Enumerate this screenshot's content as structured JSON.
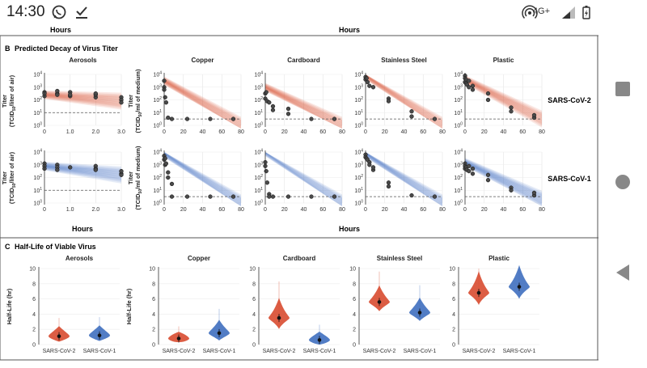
{
  "status_bar": {
    "time": "14:30",
    "network": "4G+",
    "icons": [
      "whatsapp-icon",
      "check-download-icon",
      "hotspot-icon",
      "signal-icon",
      "battery-charging-icon"
    ]
  },
  "nav_bar": {
    "icons": [
      "recents-square-icon",
      "home-circle-icon",
      "back-triangle-icon"
    ]
  },
  "figure": {
    "top_hours_left": "Hours",
    "top_hours_center": "Hours",
    "section_b_letter": "B",
    "section_b_title": "Predicted Decay of Virus Titer",
    "section_c_letter": "C",
    "section_c_title": "Half-Life of Viable Virus",
    "hours_label_b_left": "Hours",
    "hours_label_b_center": "Hours",
    "row_label_cov2": "SARS-CoV-2",
    "row_label_cov1": "SARS-CoV-1",
    "ylabel_air_1": "Titer",
    "ylabel_air_2": "(TCID",
    "ylabel_air_sub": "50",
    "ylabel_air_3": "/liter of air)",
    "ylabel_med_1": "Titer",
    "ylabel_med_2": "(TCID",
    "ylabel_med_sub": "50",
    "ylabel_med_3": "/ml of medium)",
    "halflife_ylabel": "Half-Life (hr)"
  },
  "chart_data": [
    {
      "id": "decay",
      "type": "scatter",
      "title": "Predicted Decay of Virus Titer",
      "colors": {
        "SARS-CoV-2": "#d84b30",
        "SARS-CoV-1": "#3f6fbf"
      },
      "detection_limit": {
        "air": 10,
        "medium": 3.16
      },
      "panels": [
        {
          "material": "Aerosols",
          "virus": "SARS-CoV-2",
          "xlim": [
            0,
            3
          ],
          "xticks": [
            0,
            1.0,
            2.0,
            3.0
          ],
          "ylim_log10": [
            0,
            4
          ],
          "yticks": [
            "10^0",
            "10^1",
            "10^2",
            "10^3",
            "10^4"
          ],
          "ylabel": "Titer (TCID50/liter of air)",
          "fit": [
            2.4,
            1.9
          ],
          "points": [
            [
              0,
              2.6
            ],
            [
              0,
              2.3
            ],
            [
              0,
              2.5
            ],
            [
              0.5,
              2.5
            ],
            [
              0.5,
              2.7
            ],
            [
              0.5,
              2.4
            ],
            [
              1.0,
              2.3
            ],
            [
              1.0,
              2.6
            ],
            [
              1.0,
              2.4
            ],
            [
              2.0,
              2.2
            ],
            [
              2.0,
              2.4
            ],
            [
              2.0,
              2.5
            ],
            [
              3.0,
              2.2
            ],
            [
              3.0,
              2.0
            ],
            [
              3.0,
              1.8
            ]
          ]
        },
        {
          "material": "Copper",
          "virus": "SARS-CoV-2",
          "xlim": [
            0,
            80
          ],
          "xticks": [
            0,
            20,
            40,
            60,
            80
          ],
          "ylim_log10": [
            0,
            4
          ],
          "yticks": [
            "10^0",
            "10^1",
            "10^2",
            "10^3",
            "10^4"
          ],
          "ylabel": "Titer (TCID50/ml of medium)",
          "fit": [
            3.5,
            0
          ],
          "points": [
            [
              0,
              3.5
            ],
            [
              0,
              3.0
            ],
            [
              0,
              2.8
            ],
            [
              1,
              2.2
            ],
            [
              2,
              1.8
            ],
            [
              4,
              0.6
            ],
            [
              8,
              0.5
            ],
            [
              24,
              0.5
            ],
            [
              48,
              0.5
            ],
            [
              72,
              0.5
            ]
          ]
        },
        {
          "material": "Cardboard",
          "virus": "SARS-CoV-2",
          "xlim": [
            0,
            80
          ],
          "xticks": [
            0,
            20,
            40,
            60,
            80
          ],
          "ylim_log10": [
            0,
            4
          ],
          "yticks": [
            "10^0",
            "10^1",
            "10^2",
            "10^3",
            "10^4"
          ],
          "fit": [
            3.0,
            0
          ],
          "points": [
            [
              0,
              2.5
            ],
            [
              0,
              2.1
            ],
            [
              1,
              2.6
            ],
            [
              2,
              1.9
            ],
            [
              4,
              1.8
            ],
            [
              8,
              1.5
            ],
            [
              8,
              1.2
            ],
            [
              24,
              1.3
            ],
            [
              24,
              0.9
            ],
            [
              48,
              0.5
            ],
            [
              72,
              0.5
            ]
          ]
        },
        {
          "material": "Stainless Steel",
          "virus": "SARS-CoV-2",
          "xlim": [
            0,
            80
          ],
          "xticks": [
            0,
            20,
            40,
            60,
            80
          ],
          "ylim_log10": [
            0,
            4
          ],
          "yticks": [
            "10^0",
            "10^1",
            "10^2",
            "10^3",
            "10^4"
          ],
          "fit": [
            3.9,
            0
          ],
          "points": [
            [
              0,
              3.8
            ],
            [
              0,
              3.6
            ],
            [
              1,
              3.7
            ],
            [
              2,
              3.4
            ],
            [
              4,
              3.1
            ],
            [
              8,
              3.0
            ],
            [
              24,
              2.1
            ],
            [
              24,
              1.9
            ],
            [
              48,
              1.1
            ],
            [
              48,
              0.7
            ],
            [
              72,
              0.5
            ]
          ]
        },
        {
          "material": "Plastic",
          "virus": "SARS-CoV-2",
          "xlim": [
            0,
            80
          ],
          "xticks": [
            0,
            20,
            40,
            60,
            80
          ],
          "ylim_log10": [
            0,
            4
          ],
          "yticks": [
            "10^0",
            "10^1",
            "10^2",
            "10^3",
            "10^4"
          ],
          "fit": [
            3.6,
            0.5
          ],
          "points": [
            [
              0,
              3.9
            ],
            [
              0,
              3.7
            ],
            [
              0,
              3.4
            ],
            [
              1,
              3.6
            ],
            [
              1,
              3.3
            ],
            [
              2,
              3.2
            ],
            [
              4,
              3.5
            ],
            [
              4,
              3.0
            ],
            [
              8,
              2.8
            ],
            [
              8,
              3.1
            ],
            [
              24,
              2.5
            ],
            [
              24,
              2.0
            ],
            [
              48,
              1.4
            ],
            [
              48,
              1.1
            ],
            [
              72,
              0.6
            ],
            [
              72,
              0.8
            ]
          ]
        },
        {
          "material": "Aerosols",
          "virus": "SARS-CoV-1",
          "xlim": [
            0,
            3
          ],
          "xticks": [
            0,
            1.0,
            2.0,
            3.0
          ],
          "ylim_log10": [
            0,
            4
          ],
          "yticks": [
            "10^0",
            "10^1",
            "10^2",
            "10^3",
            "10^4"
          ],
          "ylabel": "Titer (TCID50/liter of air)",
          "fit": [
            2.9,
            2.2
          ],
          "points": [
            [
              0,
              3.1
            ],
            [
              0,
              2.9
            ],
            [
              0,
              2.7
            ],
            [
              0.5,
              3.0
            ],
            [
              0.5,
              2.8
            ],
            [
              0.5,
              2.6
            ],
            [
              1.0,
              2.8
            ],
            [
              2.0,
              2.9
            ],
            [
              2.0,
              2.7
            ],
            [
              2.0,
              2.6
            ],
            [
              3.0,
              2.3
            ],
            [
              3.0,
              2.2
            ],
            [
              3.0,
              2.5
            ]
          ]
        },
        {
          "material": "Copper",
          "virus": "SARS-CoV-1",
          "xlim": [
            0,
            80
          ],
          "xticks": [
            0,
            20,
            40,
            60,
            80
          ],
          "ylim_log10": [
            0,
            4
          ],
          "yticks": [
            "10^0",
            "10^1",
            "10^2",
            "10^3",
            "10^4"
          ],
          "ylabel": "Titer (TCID50/ml of medium)",
          "fit": [
            3.9,
            0
          ],
          "points": [
            [
              0,
              3.7
            ],
            [
              0,
              3.4
            ],
            [
              1,
              3.5
            ],
            [
              1,
              3.0
            ],
            [
              2,
              3.1
            ],
            [
              4,
              2.4
            ],
            [
              4,
              2.0
            ],
            [
              8,
              1.5
            ],
            [
              8,
              0.5
            ],
            [
              24,
              0.5
            ],
            [
              48,
              0.5
            ],
            [
              72,
              0.5
            ]
          ]
        },
        {
          "material": "Cardboard",
          "virus": "SARS-CoV-1",
          "xlim": [
            0,
            80
          ],
          "xticks": [
            0,
            20,
            40,
            60,
            80
          ],
          "ylim_log10": [
            0,
            4
          ],
          "yticks": [
            "10^0",
            "10^1",
            "10^2",
            "10^3",
            "10^4"
          ],
          "fit": [
            4.0,
            0
          ],
          "points": [
            [
              0,
              3.2
            ],
            [
              0,
              2.9
            ],
            [
              1,
              2.5
            ],
            [
              2,
              1.6
            ],
            [
              4,
              0.7
            ],
            [
              4,
              0.5
            ],
            [
              8,
              0.5
            ],
            [
              24,
              0.5
            ],
            [
              48,
              0.5
            ],
            [
              72,
              0.5
            ]
          ]
        },
        {
          "material": "Stainless Steel",
          "virus": "SARS-CoV-1",
          "xlim": [
            0,
            80
          ],
          "xticks": [
            0,
            20,
            40,
            60,
            80
          ],
          "ylim_log10": [
            0,
            4
          ],
          "yticks": [
            "10^0",
            "10^1",
            "10^2",
            "10^3",
            "10^4"
          ],
          "fit": [
            3.9,
            0
          ],
          "points": [
            [
              0,
              3.8
            ],
            [
              0,
              3.6
            ],
            [
              1,
              3.5
            ],
            [
              2,
              3.4
            ],
            [
              4,
              3.2
            ],
            [
              4,
              3.0
            ],
            [
              8,
              2.6
            ],
            [
              8,
              2.8
            ],
            [
              24,
              1.6
            ],
            [
              24,
              1.3
            ],
            [
              48,
              0.6
            ],
            [
              72,
              0.5
            ]
          ]
        },
        {
          "material": "Plastic",
          "virus": "SARS-CoV-1",
          "xlim": [
            0,
            80
          ],
          "xticks": [
            0,
            20,
            40,
            60,
            80
          ],
          "ylim_log10": [
            0,
            4
          ],
          "yticks": [
            "10^0",
            "10^1",
            "10^2",
            "10^3",
            "10^4"
          ],
          "fit": [
            3.2,
            0.3
          ],
          "points": [
            [
              0,
              3.1
            ],
            [
              0,
              2.9
            ],
            [
              0,
              2.7
            ],
            [
              1,
              2.8
            ],
            [
              2,
              2.6
            ],
            [
              4,
              2.9
            ],
            [
              4,
              2.5
            ],
            [
              8,
              2.7
            ],
            [
              8,
              2.3
            ],
            [
              24,
              2.2
            ],
            [
              24,
              1.8
            ],
            [
              48,
              1.2
            ],
            [
              48,
              1.0
            ],
            [
              72,
              0.6
            ],
            [
              72,
              0.8
            ]
          ]
        }
      ]
    },
    {
      "id": "halflife",
      "type": "violin",
      "title": "Half-Life of Viable Virus",
      "ylabel": "Half-Life (hr)",
      "ylim": [
        0,
        10
      ],
      "yticks": [
        0,
        2,
        4,
        6,
        8,
        10
      ],
      "categories": [
        "SARS-CoV-2",
        "SARS-CoV-1"
      ],
      "panels": [
        {
          "material": "Aerosols",
          "medians": [
            1.1,
            1.2
          ],
          "spread": [
            0.6,
            0.6
          ]
        },
        {
          "material": "Copper",
          "medians": [
            0.8,
            1.5
          ],
          "spread": [
            0.4,
            0.8
          ]
        },
        {
          "material": "Cardboard",
          "medians": [
            3.5,
            0.6
          ],
          "spread": [
            1.2,
            0.5
          ]
        },
        {
          "material": "Stainless Steel",
          "medians": [
            5.6,
            4.2
          ],
          "spread": [
            1.0,
            0.9
          ]
        },
        {
          "material": "Plastic",
          "medians": [
            6.8,
            7.6
          ],
          "spread": [
            1.3,
            1.3
          ]
        }
      ]
    }
  ]
}
